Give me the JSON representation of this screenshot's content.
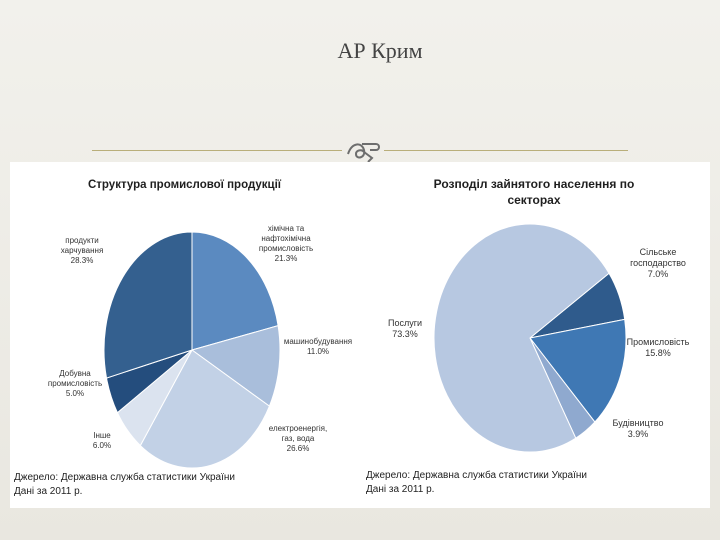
{
  "slide": {
    "title": "АР Крим",
    "colors": {
      "accent_rule": "#b9ae7a",
      "background": "#ebe9e3"
    },
    "ornament_icon": "scroll-flourish-icon"
  },
  "chart_data": [
    {
      "type": "pie",
      "title": "Структура промислової продукції",
      "slices": [
        {
          "label": [
            "хімічна та",
            "нафтохімічна",
            "промисловість"
          ],
          "value_label": "21.3%",
          "value": 21.3,
          "color": "#5b8ac0"
        },
        {
          "label": [
            "машинобудування"
          ],
          "value_label": "11.0%",
          "value": 11.0,
          "color": "#a9bedb"
        },
        {
          "label": [
            "електроенергія,",
            "газ, вода"
          ],
          "value_label": "26.6%",
          "value": 26.6,
          "color": "#c2d1e6"
        },
        {
          "label": [
            "Інше"
          ],
          "value_label": "6.0%",
          "value": 6.0,
          "color": "#dbe3ef"
        },
        {
          "label": [
            "Добувна",
            "промисловість"
          ],
          "value_label": "5.0%",
          "value": 5.0,
          "color": "#244d7d"
        },
        {
          "label": [
            "продукти",
            "харчування"
          ],
          "value_label": "28.3%",
          "value": 28.3,
          "color": "#34608f"
        }
      ],
      "source": [
        "Джерело: Державна служба статистики України",
        "Дані за 2011 р."
      ]
    },
    {
      "type": "pie",
      "title": [
        "Розподіл зайнятого населення по",
        "секторах"
      ],
      "slices": [
        {
          "label": [
            "Сільське",
            "господарство"
          ],
          "value_label": "7.0%",
          "value": 7.0,
          "color": "#2f5b8c"
        },
        {
          "label": [
            "Промисловість"
          ],
          "value_label": "15.8%",
          "value": 15.8,
          "color": "#3f78b4"
        },
        {
          "label": [
            "Будівництво"
          ],
          "value_label": "3.9%",
          "value": 3.9,
          "color": "#8fa9cf"
        },
        {
          "label": [
            "Послуги"
          ],
          "value_label": "73.3%",
          "value": 73.3,
          "color": "#b7c8e1"
        }
      ],
      "source": [
        "Джерело: Державна служба статистики України",
        "Дані за 2011 р."
      ]
    }
  ]
}
